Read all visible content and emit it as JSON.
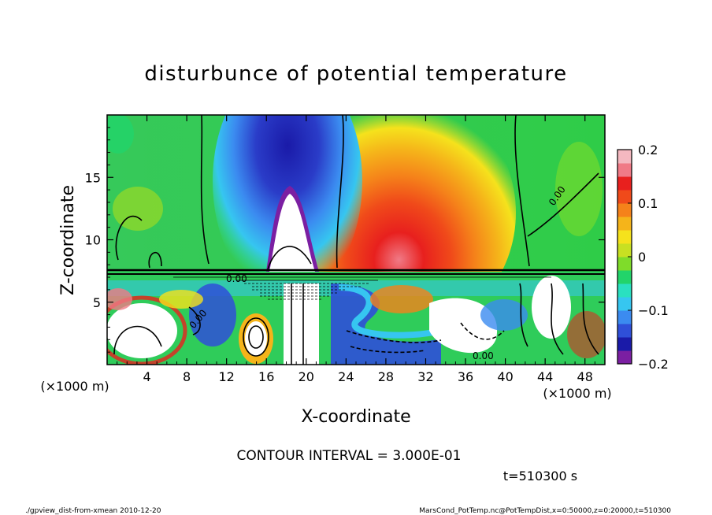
{
  "chart_data": {
    "type": "heatmap",
    "title": "disturbunce of potential temperature",
    "xlabel": "X-coordinate",
    "ylabel": "Z-coordinate",
    "x_unit": "(×1000 m)",
    "y_unit": "(×1000 m)",
    "x_ticks": [
      4,
      8,
      12,
      16,
      20,
      24,
      28,
      32,
      36,
      40,
      44,
      48
    ],
    "y_ticks": [
      5,
      10,
      15
    ],
    "xlim": [
      0,
      50
    ],
    "ylim": [
      0,
      20
    ],
    "colorbar": {
      "ticks": [
        0.2,
        0.1,
        0,
        -0.1,
        -0.2
      ],
      "tick_labels": [
        "0.2",
        "0.1",
        "0",
        "−0.1",
        "−0.2"
      ],
      "range": [
        -0.2,
        0.2
      ],
      "colors": [
        "#7b1fa2",
        "#1a1aa8",
        "#2f4fd8",
        "#3b8bf0",
        "#36c6f0",
        "#2ae0c0",
        "#22d46a",
        "#7fdc2a",
        "#c8e022",
        "#f5e21c",
        "#f5b41a",
        "#f5821a",
        "#f04a1a",
        "#e8201e",
        "#f07a86",
        "#f4b8c0"
      ]
    },
    "contour_interval": "CONTOUR INTERVAL = 3.000E-01",
    "contour_labels": [
      "0.00",
      "0.00",
      "0.00",
      "0.00"
    ]
  },
  "footer": {
    "time": "t=510300 s",
    "script": "./gpview_dist-from-xmean  2010-12-20",
    "source": "MarsCond_PotTemp.nc@PotTempDist,x=0:50000,z=0:20000,t=510300"
  }
}
